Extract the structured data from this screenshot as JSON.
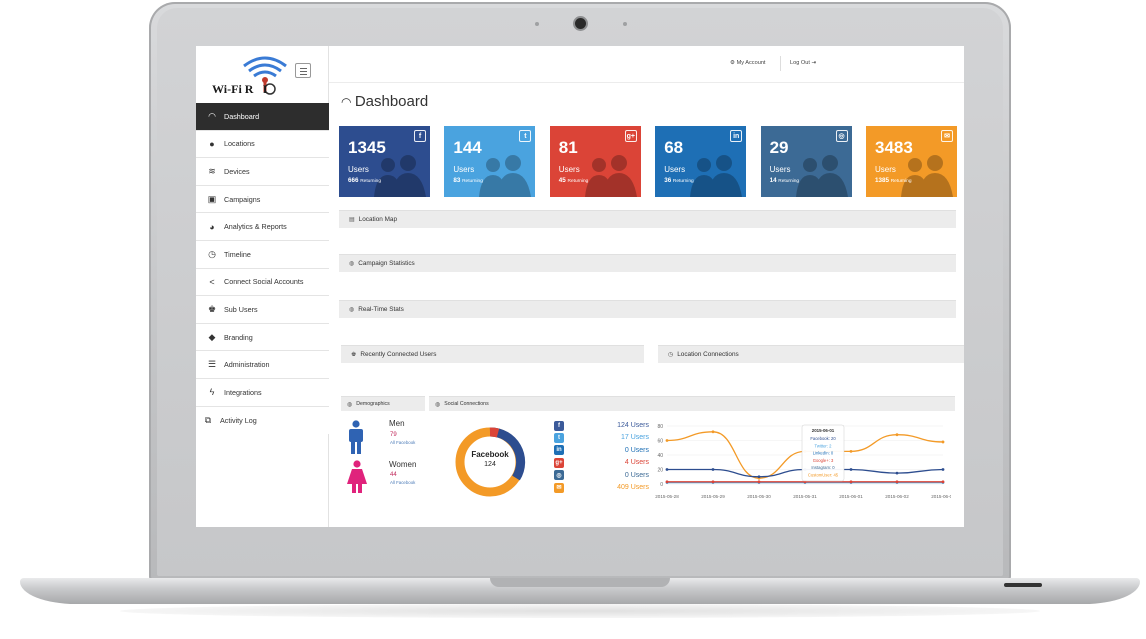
{
  "app": {
    "logo_text": "Wi-Fi R",
    "logo_text_tail": "I"
  },
  "topbar": {
    "my_account": "My Account",
    "log_out": "Log Out"
  },
  "sidebar": {
    "items": [
      {
        "label": "Dashboard",
        "icon": "speedometer-icon",
        "active": true
      },
      {
        "label": "Locations",
        "icon": "map-pin-icon"
      },
      {
        "label": "Devices",
        "icon": "wifi-icon"
      },
      {
        "label": "Campaigns",
        "icon": "campaign-icon"
      },
      {
        "label": "Analytics & Reports",
        "icon": "pie-chart-icon"
      },
      {
        "label": "Timeline",
        "icon": "clock-icon"
      },
      {
        "label": "Connect Social Accounts",
        "icon": "share-icon"
      },
      {
        "label": "Sub Users",
        "icon": "users-icon"
      },
      {
        "label": "Branding",
        "icon": "tag-icon"
      },
      {
        "label": "Administration",
        "icon": "list-icon"
      },
      {
        "label": "Integrations",
        "icon": "bolt-icon"
      },
      {
        "label": "Activity Log",
        "icon": "copy-icon"
      }
    ]
  },
  "page": {
    "title": "Dashboard"
  },
  "tiles": [
    {
      "value": "1345",
      "label": "Users",
      "returning": "666",
      "returning_label": "Returning",
      "color": "#2d4d8f",
      "icon": "facebook-icon"
    },
    {
      "value": "144",
      "label": "Users",
      "returning": "83",
      "returning_label": "Returning",
      "color": "#4aa3df",
      "icon": "twitter-icon"
    },
    {
      "value": "81",
      "label": "Users",
      "returning": "45",
      "returning_label": "Returning",
      "color": "#db4437",
      "icon": "google-plus-icon"
    },
    {
      "value": "68",
      "label": "Users",
      "returning": "36",
      "returning_label": "Returning",
      "color": "#1e6fb5",
      "icon": "linkedin-icon"
    },
    {
      "value": "29",
      "label": "Users",
      "returning": "14",
      "returning_label": "Returning",
      "color": "#3c6a95",
      "icon": "instagram-icon"
    },
    {
      "value": "3483",
      "label": "Users",
      "returning": "1385",
      "returning_label": "Returning",
      "color": "#f39a27",
      "icon": "email-icon"
    }
  ],
  "panels": {
    "location_map": "Location Map",
    "campaign_statistics": "Campaign Statistics",
    "realtime_stats": "Real-Time Stats",
    "recently_connected": "Recently Connected Users",
    "location_connections": "Location Connections",
    "demographics": "Demographics",
    "social_connections": "Social Connections"
  },
  "demographics": {
    "men": {
      "label": "Men",
      "value": "79",
      "sub": "All Facebook"
    },
    "women": {
      "label": "Women",
      "value": "44",
      "sub": "All Facebook"
    }
  },
  "donut": {
    "label": "Facebook",
    "value": "124"
  },
  "social_list": [
    {
      "icon": "facebook-icon",
      "text": "124 Users",
      "color": "#3b5a9a"
    },
    {
      "icon": "twitter-icon",
      "text": "17 Users",
      "color": "#4aa3df"
    },
    {
      "icon": "linkedin-icon",
      "text": "0 Users",
      "color": "#1e6fb5"
    },
    {
      "icon": "google-plus-icon",
      "text": "4 Users",
      "color": "#db4437"
    },
    {
      "icon": "instagram-icon",
      "text": "0 Users",
      "color": "#3c6a95"
    },
    {
      "icon": "email-icon",
      "text": "409 Users",
      "color": "#f39a27"
    }
  ],
  "chart_data": {
    "type": "line",
    "categories": [
      "2015-05-28",
      "2015-05-29",
      "2015-05-30",
      "2015-05-31",
      "2015-06-01",
      "2015-06-02",
      "2015-06-03"
    ],
    "ylim": [
      0,
      80
    ],
    "yticks": [
      "0",
      "20",
      "40",
      "60",
      "80"
    ],
    "series": [
      {
        "color": "#f39a27",
        "values": [
          60,
          72,
          8,
          45,
          45,
          68,
          58
        ]
      },
      {
        "color": "#2d4d8f",
        "values": [
          20,
          20,
          10,
          20,
          20,
          15,
          20
        ]
      },
      {
        "color": "#4aa3df",
        "values": [
          2,
          2,
          2,
          2,
          2,
          2,
          2
        ]
      },
      {
        "color": "#db4437",
        "values": [
          3,
          3,
          3,
          3,
          3,
          3,
          3
        ]
      }
    ],
    "tooltip": {
      "date": "2015-06-01",
      "lines": [
        {
          "text": "Facebook: 20",
          "color": "#2d4d8f"
        },
        {
          "text": "Twitter: 2",
          "color": "#4aa3df"
        },
        {
          "text": "LinkedIn: 0",
          "color": "#1e6fb5"
        },
        {
          "text": "Google+: 3",
          "color": "#db4437"
        },
        {
          "text": "Instagram: 0",
          "color": "#3c6a95"
        },
        {
          "text": "CustomUser: 45",
          "color": "#f39a27"
        }
      ]
    }
  }
}
